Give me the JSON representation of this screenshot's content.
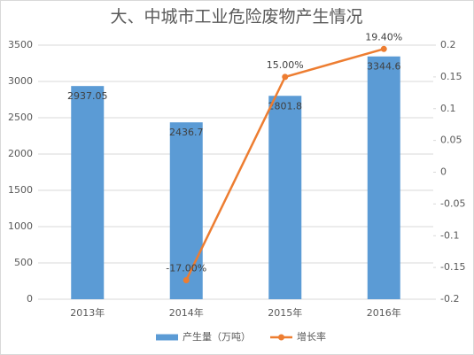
{
  "chart_data": {
    "type": "bar_line",
    "title": "大、中城市工业危险废物产生情况",
    "categories": [
      "2013年",
      "2014年",
      "2015年",
      "2016年"
    ],
    "series": [
      {
        "name": "产生量（万吨）",
        "color": "#5b9bd5",
        "type": "bar",
        "values": [
          2937.05,
          2436.7,
          2801.8,
          3344.6
        ]
      },
      {
        "name": "增长率",
        "color": "#ed7d31",
        "type": "line",
        "axis": "y2",
        "values": [
          null,
          -0.17,
          0.15,
          0.194
        ],
        "value_labels": [
          null,
          "-17.00%",
          "15.00%",
          "19.40%"
        ]
      }
    ],
    "ylim": [
      0,
      3500
    ],
    "yticks": [
      0,
      500,
      1000,
      1500,
      2000,
      2500,
      3000,
      3500
    ],
    "y2lim": [
      -0.2,
      0.2
    ],
    "y2ticks": [
      -0.2,
      -0.15,
      -0.1,
      -0.05,
      0,
      0.05,
      0.1,
      0.15,
      0.2
    ],
    "legend": "bottom"
  }
}
